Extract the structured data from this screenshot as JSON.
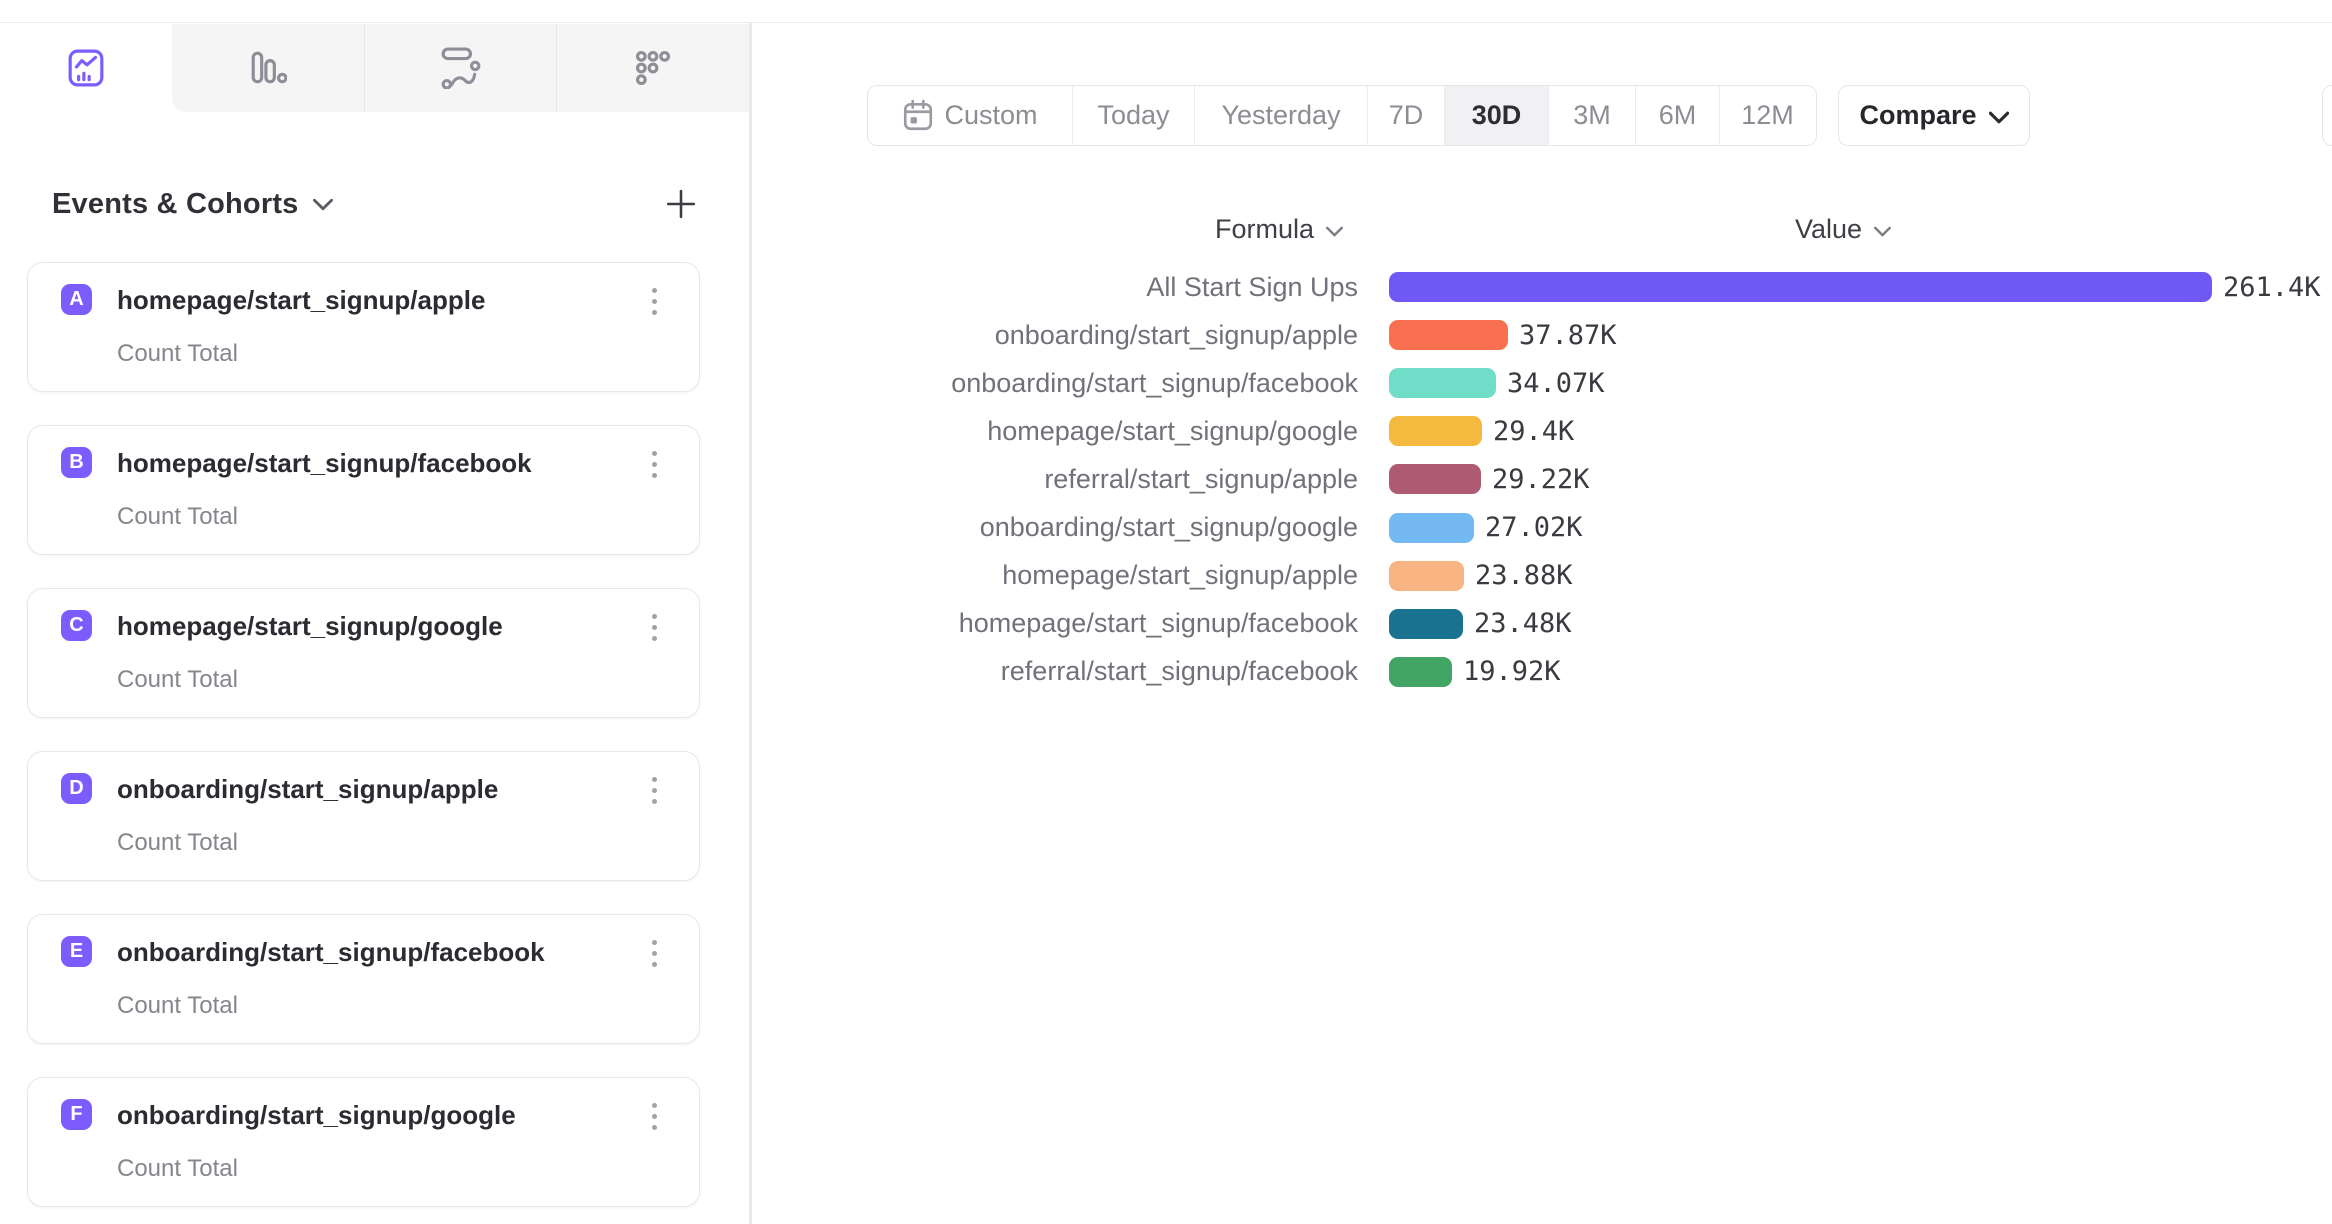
{
  "accent": "#7c5cfc",
  "tabs": [
    {
      "id": "insights",
      "active": true
    },
    {
      "id": "funnels",
      "active": false
    },
    {
      "id": "flows",
      "active": false
    },
    {
      "id": "retention",
      "active": false
    }
  ],
  "sidebar": {
    "title": "Events & Cohorts",
    "cards": [
      {
        "letter": "A",
        "name": "homepage/start_signup/apple",
        "metric": "Count Total"
      },
      {
        "letter": "B",
        "name": "homepage/start_signup/facebook",
        "metric": "Count Total"
      },
      {
        "letter": "C",
        "name": "homepage/start_signup/google",
        "metric": "Count Total"
      },
      {
        "letter": "D",
        "name": "onboarding/start_signup/apple",
        "metric": "Count Total"
      },
      {
        "letter": "E",
        "name": "onboarding/start_signup/facebook",
        "metric": "Count Total"
      },
      {
        "letter": "F",
        "name": "onboarding/start_signup/google",
        "metric": "Count Total"
      }
    ],
    "badge_color": "#7c5cfc"
  },
  "toolbar": {
    "segments": [
      "Custom",
      "Today",
      "Yesterday",
      "7D",
      "30D",
      "3M",
      "6M",
      "12M"
    ],
    "active_segment": "30D",
    "compare_label": "Compare"
  },
  "chart": {
    "formula_header": "Formula",
    "value_header": "Value"
  },
  "chart_data": {
    "type": "bar",
    "orientation": "horizontal",
    "categories": [
      "All Start Sign Ups",
      "onboarding/start_signup/apple",
      "onboarding/start_signup/facebook",
      "homepage/start_signup/google",
      "referral/start_signup/apple",
      "onboarding/start_signup/google",
      "homepage/start_signup/apple",
      "homepage/start_signup/facebook",
      "referral/start_signup/facebook"
    ],
    "values": [
      261.4,
      37.87,
      34.07,
      29.4,
      29.22,
      27.02,
      23.88,
      23.48,
      19.92
    ],
    "value_labels": [
      "261.4K",
      "37.87K",
      "34.07K",
      "29.4K",
      "29.22K",
      "27.02K",
      "23.88K",
      "23.48K",
      "19.92K"
    ],
    "colors": [
      "#6f58f3",
      "#f8704f",
      "#70ddc9",
      "#f3ba3f",
      "#ad5a72",
      "#75b9f3",
      "#f9b483",
      "#19738f",
      "#42a566"
    ],
    "max_value": 261.4,
    "xlim": [
      0,
      261.4
    ],
    "legend": false,
    "grid": false
  }
}
